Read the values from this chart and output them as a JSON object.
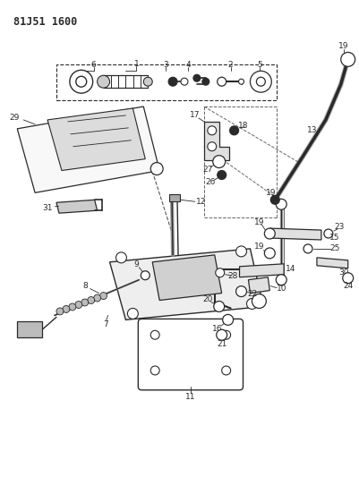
{
  "title": "81J51 1600",
  "background_color": "#ffffff",
  "line_color": "#2a2a2a",
  "fig_width": 4.02,
  "fig_height": 5.33,
  "dpi": 100
}
